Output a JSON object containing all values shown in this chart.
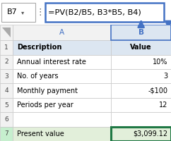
{
  "formula_bar_text": "=PV(B2/B5, B3*B5, B4)",
  "cell_ref": "B7",
  "rows": [
    {
      "a": "Description",
      "b": "Value",
      "bold_a": true,
      "bold_b": true,
      "bg": "#dce6f1",
      "align_b": "center"
    },
    {
      "a": "Annual interest rate",
      "b": "10%",
      "bold_a": false,
      "bold_b": false,
      "bg": "#ffffff",
      "align_b": "right"
    },
    {
      "a": "No. of years",
      "b": "3",
      "bold_a": false,
      "bold_b": false,
      "bg": "#ffffff",
      "align_b": "right"
    },
    {
      "a": "Monthly payment",
      "b": "-$100",
      "bold_a": false,
      "bold_b": false,
      "bg": "#ffffff",
      "align_b": "right"
    },
    {
      "a": "Periods per year",
      "b": "12",
      "bold_a": false,
      "bold_b": false,
      "bg": "#ffffff",
      "align_b": "right"
    },
    {
      "a": "",
      "b": "",
      "bold_a": false,
      "bold_b": false,
      "bg": "#ffffff",
      "align_b": "right"
    },
    {
      "a": "Present value",
      "b": "$3,099.12",
      "bold_a": false,
      "bold_b": false,
      "bg": "#e2efda",
      "align_b": "right"
    }
  ],
  "row_numbers": [
    "1",
    "2",
    "3",
    "4",
    "5",
    "6",
    "7"
  ],
  "formula_bar_border": "#4472c4",
  "grid_color": "#c8c8c8",
  "col_header_bg": "#f2f2f2",
  "col_b_header_bg": "#dce6f1",
  "selected_cell_border": "#1f7844",
  "arrow_color": "#4472c4",
  "header_letter_color": "#4472c4",
  "row7_num_bg": "#c6efce",
  "formula_bar_bg": "#ffffff",
  "cell_ref_border": "#aaaaaa",
  "fig_bg": "#ffffff"
}
